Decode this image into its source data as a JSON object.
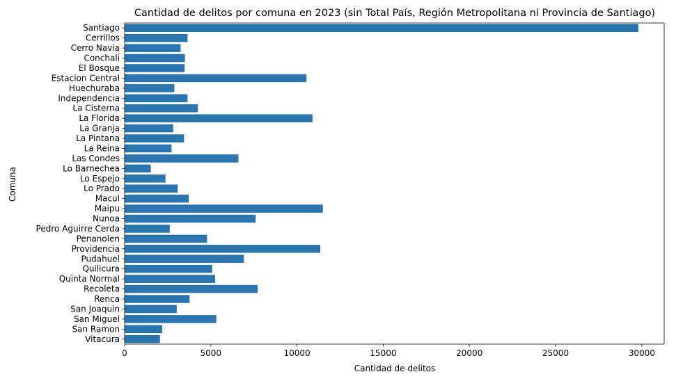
{
  "chart_data": {
    "type": "bar",
    "orientation": "horizontal",
    "title": "Cantidad de delitos por comuna en 2023 (sin Total País, Región Metropolitana ni Provincia de Santiago)",
    "xlabel": "Cantidad de delitos",
    "ylabel": "Comuna",
    "xlim": [
      0,
      31300
    ],
    "xticks": [
      0,
      5000,
      10000,
      15000,
      20000,
      25000,
      30000
    ],
    "grid": false,
    "bar_color": "#2a75ad",
    "categories": [
      "Santiago",
      "Cerrillos",
      "Cerro Navia",
      "Conchali",
      "El Bosque",
      "Estacion Central",
      "Huechuraba",
      "Independencia",
      "La Cisterna",
      "La Florida",
      "La Granja",
      "La Pintana",
      "La Reina",
      "Las Condes",
      "Lo Barnechea",
      "Lo Espejo",
      "Lo Prado",
      "Macul",
      "Maipu",
      "Nunoa",
      "Pedro Aguirre Cerda",
      "Penanolen",
      "Providencia",
      "Pudahuel",
      "Quilicura",
      "Quinta Normal",
      "Recoleta",
      "Renca",
      "San Joaquin",
      "San Miguel",
      "San Ramon",
      "Vitacura"
    ],
    "values": [
      29800,
      3650,
      3250,
      3500,
      3480,
      10550,
      2880,
      3650,
      4250,
      10900,
      2820,
      3450,
      2720,
      6600,
      1520,
      2370,
      3080,
      3720,
      11500,
      7600,
      2620,
      4780,
      11350,
      6920,
      5080,
      5250,
      7720,
      3770,
      3020,
      5320,
      2180,
      2050
    ]
  }
}
